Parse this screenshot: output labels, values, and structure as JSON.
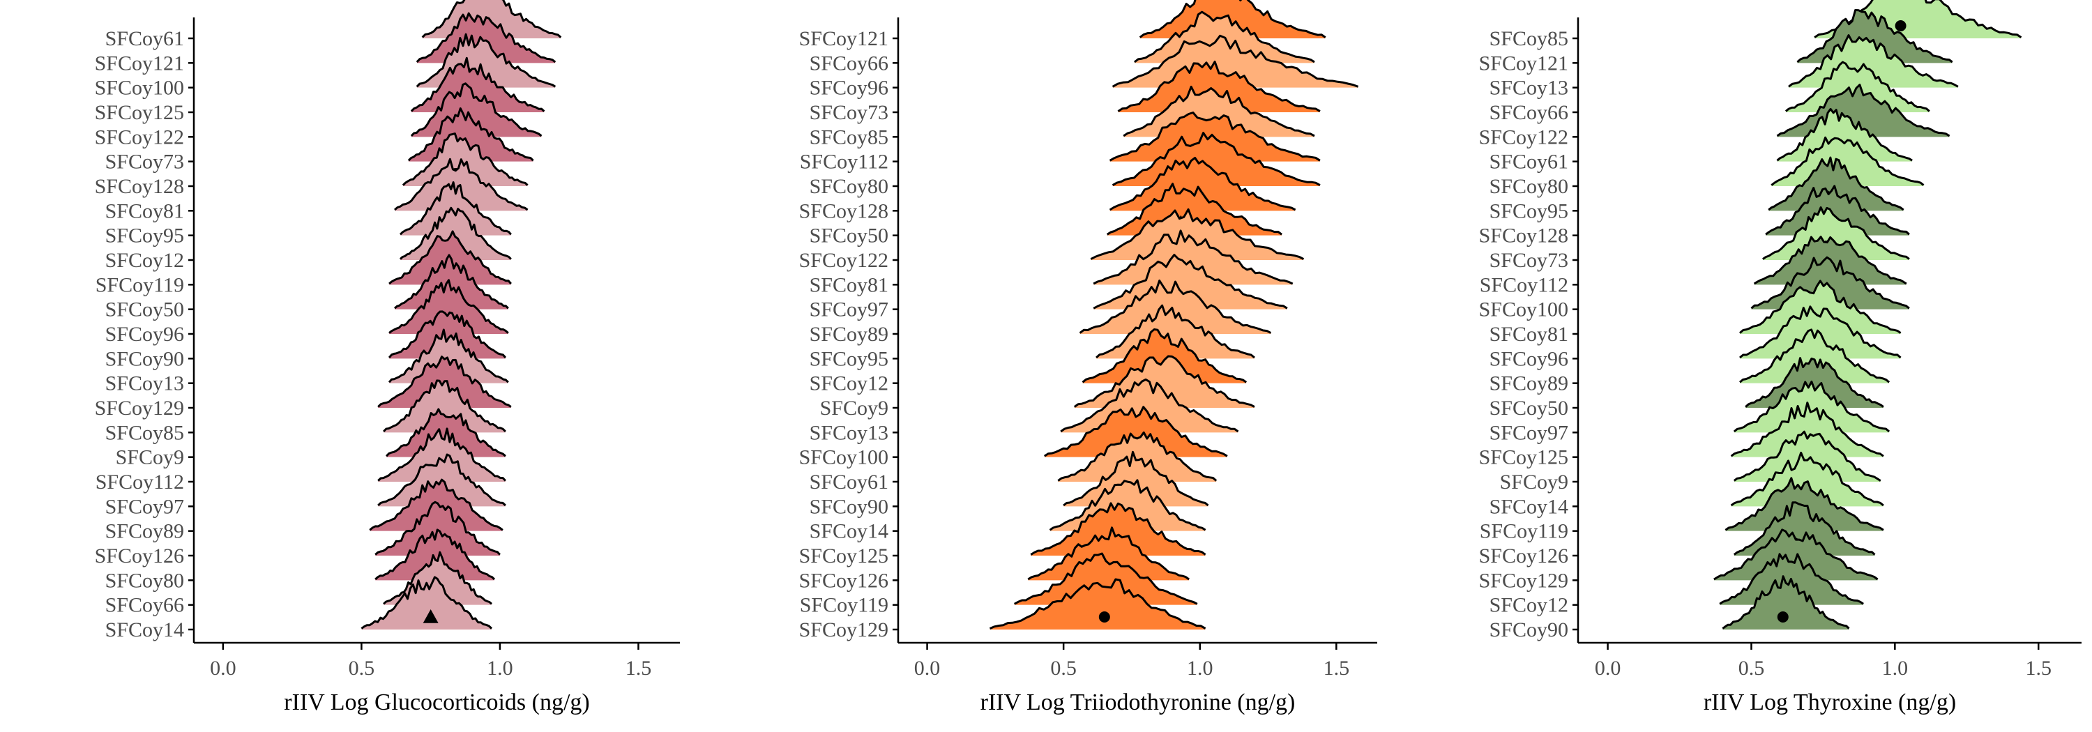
{
  "chart_data": [
    {
      "type": "ridgeline",
      "xlabel": "rIIV Log Glucocorticoids (ng/g)",
      "xlim": [
        -0.05,
        1.65
      ],
      "xticks": [
        0.0,
        0.5,
        1.0,
        1.5
      ],
      "xtick_labels": [
        "0.0",
        "0.5",
        "1.0",
        "1.5"
      ],
      "colors": [
        "#d9a3aa",
        "#c76f82"
      ],
      "rows": [
        {
          "label": "SFCoy61",
          "center": 0.92,
          "lo": 0.72,
          "hi": 1.22,
          "marker": "triangle",
          "fill": 0
        },
        {
          "label": "SFCoy121",
          "center": 0.9,
          "lo": 0.7,
          "hi": 1.2,
          "marker": "circle",
          "fill": 1
        },
        {
          "label": "SFCoy100",
          "center": 0.89,
          "lo": 0.7,
          "hi": 1.2,
          "marker": "triangle",
          "fill": 0
        },
        {
          "label": "SFCoy125",
          "center": 0.87,
          "lo": 0.68,
          "hi": 1.16,
          "marker": "triangle",
          "fill": 1
        },
        {
          "label": "SFCoy122",
          "center": 0.86,
          "lo": 0.68,
          "hi": 1.15,
          "marker": "triangle",
          "fill": 1
        },
        {
          "label": "SFCoy73",
          "center": 0.85,
          "lo": 0.67,
          "hi": 1.12,
          "marker": "triangle",
          "fill": 1
        },
        {
          "label": "SFCoy128",
          "center": 0.84,
          "lo": 0.65,
          "hi": 1.1,
          "marker": "circle",
          "fill": 0
        },
        {
          "label": "SFCoy81",
          "center": 0.83,
          "lo": 0.62,
          "hi": 1.1,
          "marker": "circle",
          "fill": 0
        },
        {
          "label": "SFCoy95",
          "center": 0.83,
          "lo": 0.64,
          "hi": 1.04,
          "marker": "triangle",
          "fill": 0
        },
        {
          "label": "SFCoy12",
          "center": 0.83,
          "lo": 0.64,
          "hi": 1.04,
          "marker": "circle",
          "fill": 0
        },
        {
          "label": "SFCoy119",
          "center": 0.81,
          "lo": 0.6,
          "hi": 1.04,
          "marker": "triangle",
          "fill": 1
        },
        {
          "label": "SFCoy50",
          "center": 0.81,
          "lo": 0.62,
          "hi": 1.03,
          "marker": "triangle",
          "fill": 1
        },
        {
          "label": "SFCoy96",
          "center": 0.81,
          "lo": 0.6,
          "hi": 1.03,
          "marker": "circle",
          "fill": 1
        },
        {
          "label": "SFCoy90",
          "center": 0.81,
          "lo": 0.6,
          "hi": 1.02,
          "marker": "circle",
          "fill": 1
        },
        {
          "label": "SFCoy13",
          "center": 0.81,
          "lo": 0.6,
          "hi": 1.03,
          "marker": "triangle",
          "fill": 0
        },
        {
          "label": "SFCoy129",
          "center": 0.8,
          "lo": 0.56,
          "hi": 1.04,
          "marker": "circle",
          "fill": 1
        },
        {
          "label": "SFCoy85",
          "center": 0.79,
          "lo": 0.58,
          "hi": 1.02,
          "marker": "circle",
          "fill": 0
        },
        {
          "label": "SFCoy9",
          "center": 0.8,
          "lo": 0.59,
          "hi": 1.02,
          "marker": "triangle",
          "fill": 1
        },
        {
          "label": "SFCoy112",
          "center": 0.79,
          "lo": 0.56,
          "hi": 1.02,
          "marker": "circle",
          "fill": 0
        },
        {
          "label": "SFCoy97",
          "center": 0.79,
          "lo": 0.56,
          "hi": 1.02,
          "marker": "circle",
          "fill": 0
        },
        {
          "label": "SFCoy89",
          "center": 0.78,
          "lo": 0.53,
          "hi": 1.01,
          "marker": "circle",
          "fill": 1
        },
        {
          "label": "SFCoy126",
          "center": 0.78,
          "lo": 0.55,
          "hi": 1.0,
          "marker": "circle",
          "fill": 1
        },
        {
          "label": "SFCoy80",
          "center": 0.78,
          "lo": 0.55,
          "hi": 0.98,
          "marker": "triangle",
          "fill": 1
        },
        {
          "label": "SFCoy66",
          "center": 0.78,
          "lo": 0.58,
          "hi": 0.97,
          "marker": "circle",
          "fill": 0
        },
        {
          "label": "SFCoy14",
          "center": 0.75,
          "lo": 0.5,
          "hi": 0.97,
          "marker": "triangle",
          "fill": 0
        }
      ]
    },
    {
      "type": "ridgeline",
      "xlabel": "rIIV Log Triiodothyronine (ng/g)",
      "xlim": [
        -0.05,
        1.65
      ],
      "xticks": [
        0.0,
        0.5,
        1.0,
        1.5
      ],
      "xtick_labels": [
        "0.0",
        "0.5",
        "1.0",
        "1.5"
      ],
      "colors": [
        "#ffb07a",
        "#ff7f32"
      ],
      "rows": [
        {
          "label": "SFCoy121",
          "center": 1.05,
          "lo": 0.78,
          "hi": 1.46,
          "marker": "circle",
          "fill": 1
        },
        {
          "label": "SFCoy66",
          "center": 1.03,
          "lo": 0.76,
          "hi": 1.42,
          "marker": "circle",
          "fill": 0
        },
        {
          "label": "SFCoy96",
          "center": 1.02,
          "lo": 0.68,
          "hi": 1.58,
          "marker": "circle",
          "fill": 0
        },
        {
          "label": "SFCoy73",
          "center": 1.01,
          "lo": 0.7,
          "hi": 1.44,
          "marker": "triangle",
          "fill": 1
        },
        {
          "label": "SFCoy85",
          "center": 1.0,
          "lo": 0.72,
          "hi": 1.42,
          "marker": "circle",
          "fill": 0
        },
        {
          "label": "SFCoy112",
          "center": 0.99,
          "lo": 0.67,
          "hi": 1.44,
          "marker": "circle",
          "fill": 1
        },
        {
          "label": "SFCoy80",
          "center": 0.99,
          "lo": 0.68,
          "hi": 1.44,
          "marker": "triangle",
          "fill": 1
        },
        {
          "label": "SFCoy128",
          "center": 0.95,
          "lo": 0.67,
          "hi": 1.35,
          "marker": "circle",
          "fill": 1
        },
        {
          "label": "SFCoy50",
          "center": 0.93,
          "lo": 0.66,
          "hi": 1.3,
          "marker": "triangle",
          "fill": 1
        },
        {
          "label": "SFCoy122",
          "center": 0.92,
          "lo": 0.6,
          "hi": 1.38,
          "marker": "triangle",
          "fill": 0
        },
        {
          "label": "SFCoy81",
          "center": 0.92,
          "lo": 0.61,
          "hi": 1.34,
          "marker": "circle",
          "fill": 0
        },
        {
          "label": "SFCoy97",
          "center": 0.91,
          "lo": 0.61,
          "hi": 1.32,
          "marker": "circle",
          "fill": 0
        },
        {
          "label": "SFCoy89",
          "center": 0.87,
          "lo": 0.56,
          "hi": 1.26,
          "marker": "circle",
          "fill": 0
        },
        {
          "label": "SFCoy95",
          "center": 0.87,
          "lo": 0.62,
          "hi": 1.2,
          "marker": "triangle",
          "fill": 0
        },
        {
          "label": "SFCoy12",
          "center": 0.85,
          "lo": 0.57,
          "hi": 1.17,
          "marker": "circle",
          "fill": 1
        },
        {
          "label": "SFCoy9",
          "center": 0.85,
          "lo": 0.54,
          "hi": 1.2,
          "marker": "circle",
          "fill": 0
        },
        {
          "label": "SFCoy13",
          "center": 0.79,
          "lo": 0.49,
          "hi": 1.14,
          "marker": "triangle",
          "fill": 0
        },
        {
          "label": "SFCoy100",
          "center": 0.76,
          "lo": 0.43,
          "hi": 1.1,
          "marker": "triangle",
          "fill": 1
        },
        {
          "label": "SFCoy61",
          "center": 0.77,
          "lo": 0.48,
          "hi": 1.06,
          "marker": "triangle",
          "fill": 0
        },
        {
          "label": "SFCoy90",
          "center": 0.76,
          "lo": 0.5,
          "hi": 1.03,
          "marker": "circle",
          "fill": 0
        },
        {
          "label": "SFCoy14",
          "center": 0.73,
          "lo": 0.45,
          "hi": 1.02,
          "marker": "triangle",
          "fill": 0
        },
        {
          "label": "SFCoy125",
          "center": 0.69,
          "lo": 0.38,
          "hi": 1.02,
          "marker": "triangle",
          "fill": 1
        },
        {
          "label": "SFCoy126",
          "center": 0.66,
          "lo": 0.37,
          "hi": 0.96,
          "marker": "circle",
          "fill": 1
        },
        {
          "label": "SFCoy119",
          "center": 0.65,
          "lo": 0.32,
          "hi": 0.99,
          "marker": "circle",
          "fill": 1
        },
        {
          "label": "SFCoy129",
          "center": 0.65,
          "lo": 0.23,
          "hi": 1.02,
          "marker": "circle",
          "fill": 1
        }
      ]
    },
    {
      "type": "ridgeline",
      "xlabel": "rIIV Log Thyroxine (ng/g)",
      "xlim": [
        -0.05,
        1.65
      ],
      "xticks": [
        0.0,
        0.5,
        1.0,
        1.5
      ],
      "xtick_labels": [
        "0.0",
        "0.5",
        "1.0",
        "1.5"
      ],
      "colors": [
        "#b8e89e",
        "#7a9a68"
      ],
      "rows": [
        {
          "label": "SFCoy85",
          "center": 1.02,
          "lo": 0.72,
          "hi": 1.44,
          "marker": "circle",
          "fill": 0
        },
        {
          "label": "SFCoy121",
          "center": 0.88,
          "lo": 0.66,
          "hi": 1.2,
          "marker": "circle",
          "fill": 1
        },
        {
          "label": "SFCoy13",
          "center": 0.86,
          "lo": 0.63,
          "hi": 1.22,
          "marker": "triangle",
          "fill": 0
        },
        {
          "label": "SFCoy66",
          "center": 0.85,
          "lo": 0.62,
          "hi": 1.12,
          "marker": "circle",
          "fill": 0
        },
        {
          "label": "SFCoy122",
          "center": 0.84,
          "lo": 0.59,
          "hi": 1.19,
          "marker": "triangle",
          "fill": 1
        },
        {
          "label": "SFCoy61",
          "center": 0.79,
          "lo": 0.59,
          "hi": 1.06,
          "marker": "triangle",
          "fill": 0
        },
        {
          "label": "SFCoy80",
          "center": 0.78,
          "lo": 0.57,
          "hi": 1.1,
          "marker": "triangle",
          "fill": 0
        },
        {
          "label": "SFCoy95",
          "center": 0.77,
          "lo": 0.56,
          "hi": 1.03,
          "marker": "triangle",
          "fill": 1
        },
        {
          "label": "SFCoy128",
          "center": 0.76,
          "lo": 0.55,
          "hi": 1.05,
          "marker": "circle",
          "fill": 1
        },
        {
          "label": "SFCoy73",
          "center": 0.76,
          "lo": 0.54,
          "hi": 1.05,
          "marker": "triangle",
          "fill": 0
        },
        {
          "label": "SFCoy112",
          "center": 0.76,
          "lo": 0.51,
          "hi": 1.04,
          "marker": "circle",
          "fill": 1
        },
        {
          "label": "SFCoy100",
          "center": 0.75,
          "lo": 0.5,
          "hi": 1.05,
          "marker": "triangle",
          "fill": 1
        },
        {
          "label": "SFCoy81",
          "center": 0.72,
          "lo": 0.46,
          "hi": 1.02,
          "marker": "circle",
          "fill": 0
        },
        {
          "label": "SFCoy96",
          "center": 0.72,
          "lo": 0.46,
          "hi": 1.02,
          "marker": "circle",
          "fill": 0
        },
        {
          "label": "SFCoy89",
          "center": 0.71,
          "lo": 0.46,
          "hi": 0.98,
          "marker": "circle",
          "fill": 0
        },
        {
          "label": "SFCoy50",
          "center": 0.71,
          "lo": 0.48,
          "hi": 0.96,
          "marker": "triangle",
          "fill": 1
        },
        {
          "label": "SFCoy97",
          "center": 0.69,
          "lo": 0.44,
          "hi": 0.98,
          "marker": "circle",
          "fill": 0
        },
        {
          "label": "SFCoy125",
          "center": 0.69,
          "lo": 0.43,
          "hi": 0.96,
          "marker": "triangle",
          "fill": 0
        },
        {
          "label": "SFCoy9",
          "center": 0.7,
          "lo": 0.44,
          "hi": 0.95,
          "marker": "triangle",
          "fill": 0
        },
        {
          "label": "SFCoy14",
          "center": 0.69,
          "lo": 0.43,
          "hi": 0.96,
          "marker": "triangle",
          "fill": 0
        },
        {
          "label": "SFCoy119",
          "center": 0.66,
          "lo": 0.41,
          "hi": 0.96,
          "marker": "triangle",
          "fill": 1
        },
        {
          "label": "SFCoy126",
          "center": 0.65,
          "lo": 0.44,
          "hi": 0.93,
          "marker": "circle",
          "fill": 1
        },
        {
          "label": "SFCoy129",
          "center": 0.64,
          "lo": 0.37,
          "hi": 0.94,
          "marker": "circle",
          "fill": 1
        },
        {
          "label": "SFCoy12",
          "center": 0.62,
          "lo": 0.39,
          "hi": 0.89,
          "marker": "circle",
          "fill": 1
        },
        {
          "label": "SFCoy90",
          "center": 0.61,
          "lo": 0.4,
          "hi": 0.84,
          "marker": "circle",
          "fill": 1
        }
      ]
    }
  ]
}
